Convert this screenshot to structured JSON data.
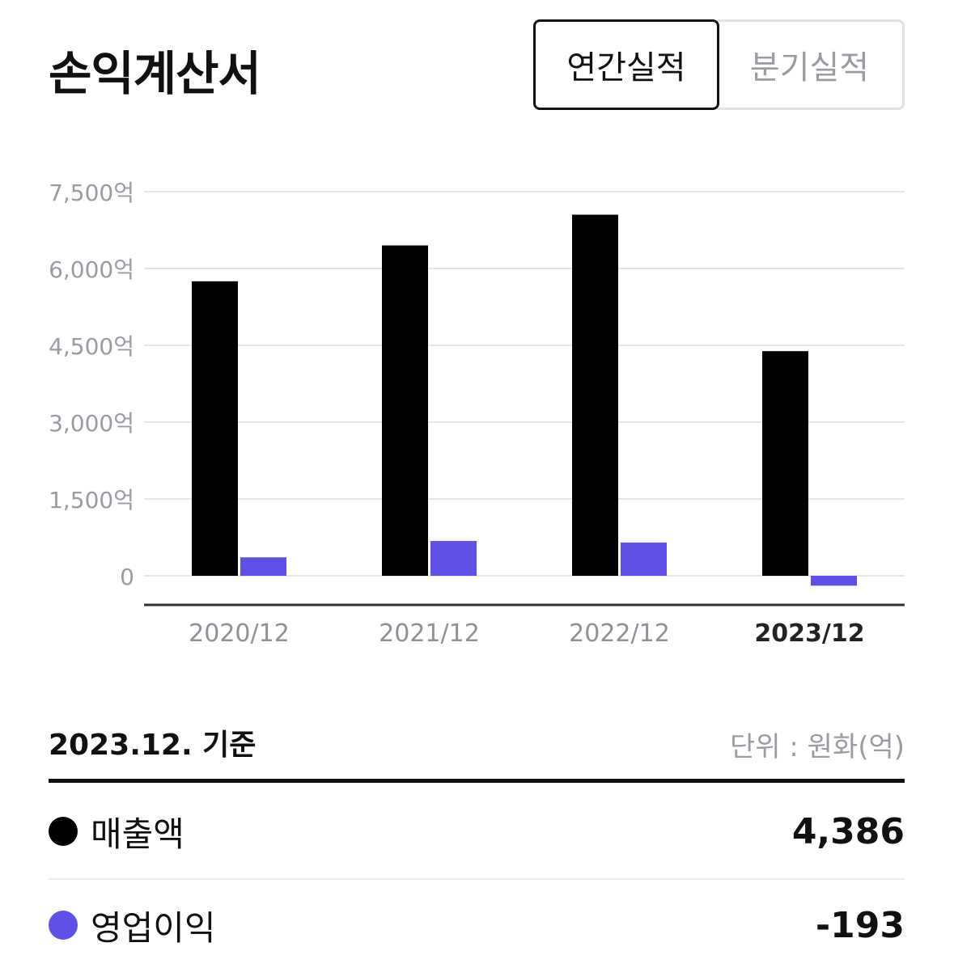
{
  "header": {
    "title": "손익계산서",
    "tabs": [
      {
        "label": "연간실적",
        "active": true
      },
      {
        "label": "분기실적",
        "active": false
      }
    ]
  },
  "chart_data": {
    "type": "bar",
    "categories": [
      "2020/12",
      "2021/12",
      "2022/12",
      "2023/12"
    ],
    "series": [
      {
        "name": "매출액",
        "color": "#000000",
        "values": [
          5750,
          6450,
          7050,
          4386
        ]
      },
      {
        "name": "영업이익",
        "color": "#6150e8",
        "values": [
          360,
          680,
          650,
          -193
        ]
      }
    ],
    "yticks": [
      {
        "value": 7500,
        "label": "7,500억"
      },
      {
        "value": 6000,
        "label": "6,000억"
      },
      {
        "value": 4500,
        "label": "4,500억"
      },
      {
        "value": 3000,
        "label": "3,000억"
      },
      {
        "value": 1500,
        "label": "1,500억"
      },
      {
        "value": 0,
        "label": "0"
      }
    ],
    "ylim": [
      -500,
      7500
    ],
    "grid": true,
    "highlighted_category": "2023/12"
  },
  "summary": {
    "basis": "2023.12. 기준",
    "unit": "단위 : 원화(억)",
    "rows": [
      {
        "label": "매출액",
        "value": "4,386",
        "color": "#000000"
      },
      {
        "label": "영업이익",
        "value": "-193",
        "color": "#6150e8"
      }
    ]
  }
}
